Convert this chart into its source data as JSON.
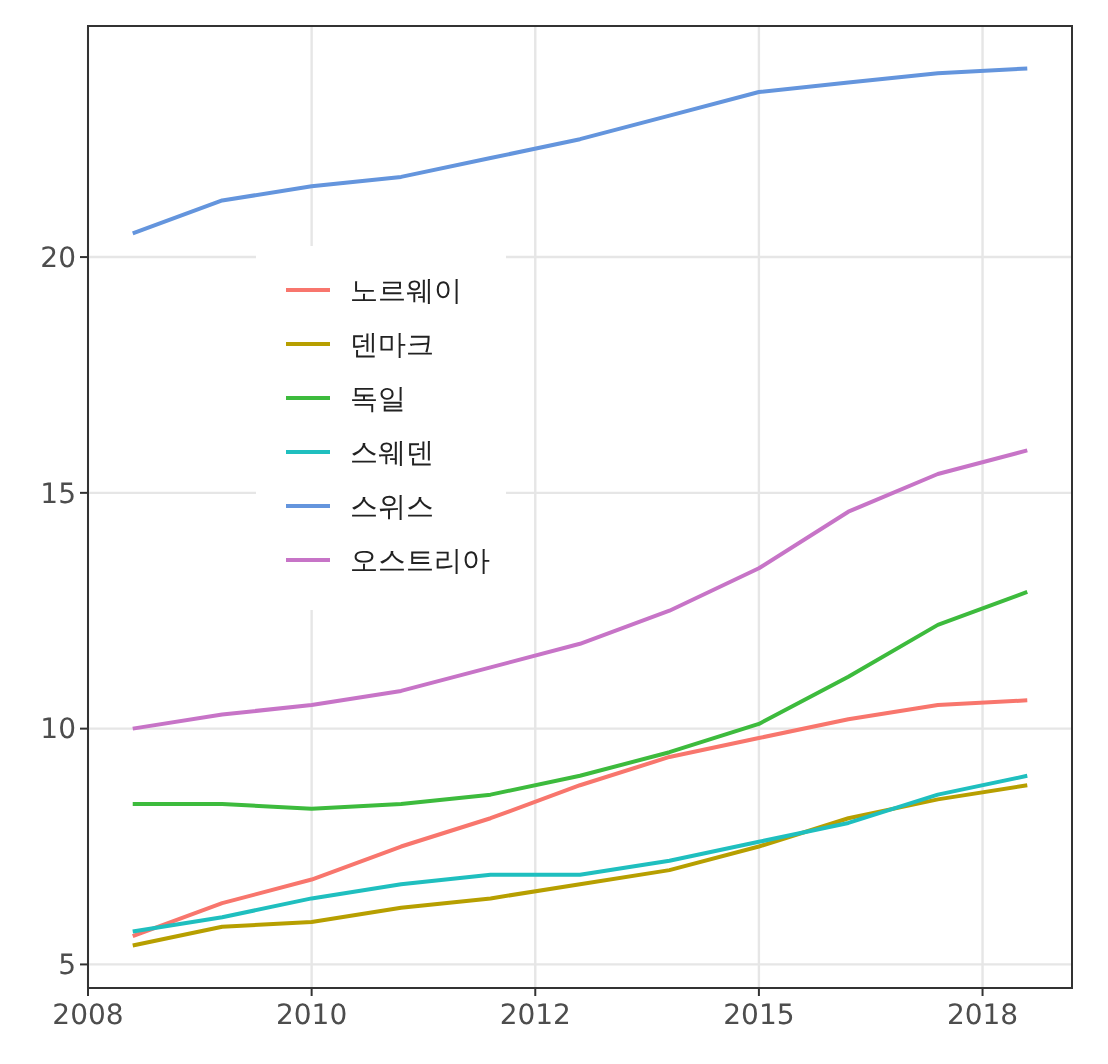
{
  "chart_data": {
    "type": "line",
    "x": [
      2008,
      2009,
      2010,
      2011,
      2012,
      2013,
      2014,
      2015,
      2016,
      2017,
      2018
    ],
    "series": [
      {
        "name": "노르웨이",
        "color": "#f8766d",
        "values": [
          5.6,
          6.3,
          6.8,
          7.5,
          8.1,
          8.8,
          9.4,
          9.8,
          10.2,
          10.5,
          10.6
        ]
      },
      {
        "name": "덴마크",
        "color": "#b79f00",
        "values": [
          5.4,
          5.8,
          5.9,
          6.2,
          6.4,
          6.7,
          7.0,
          7.5,
          8.1,
          8.5,
          8.8
        ]
      },
      {
        "name": "독일",
        "color": "#3dbb3d",
        "values": [
          8.4,
          8.4,
          8.3,
          8.4,
          8.6,
          9.0,
          9.5,
          10.1,
          11.1,
          12.2,
          12.9
        ]
      },
      {
        "name": "스웨덴",
        "color": "#1fbfbf",
        "values": [
          5.7,
          6.0,
          6.4,
          6.7,
          6.9,
          6.9,
          7.2,
          7.6,
          8.0,
          8.6,
          9.0
        ]
      },
      {
        "name": "스위스",
        "color": "#6495dd",
        "values": [
          20.5,
          21.2,
          21.5,
          21.7,
          22.1,
          22.5,
          23.0,
          23.5,
          23.7,
          23.9,
          24.0
        ]
      },
      {
        "name": "오스트리아",
        "color": "#c774c7",
        "values": [
          10.0,
          10.3,
          10.5,
          10.8,
          11.3,
          11.8,
          12.5,
          13.4,
          14.6,
          15.4,
          15.9
        ]
      }
    ],
    "xlim": [
      2007.5,
      2018.5
    ],
    "xticks": [
      {
        "value": 2007.5,
        "label": "2008"
      },
      2010,
      {
        "value": 2012.5,
        "label": "2012"
      },
      2015,
      {
        "value": 2017.5,
        "label": "2018"
      }
    ],
    "ylim": [
      4.5,
      24.9
    ],
    "yticks": [
      5,
      10,
      15,
      20
    ],
    "grid": true,
    "legend": "top left"
  }
}
